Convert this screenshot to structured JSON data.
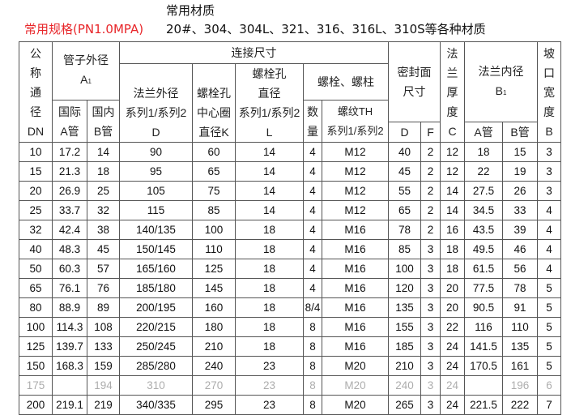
{
  "heading": {
    "material_title": "常用材质",
    "spec_title": "常用规格(PN1.0MPA)",
    "materials": "20#、304、304L、321、316、316L、310S等各种材质",
    "spec_color": "#e8262a"
  },
  "header": {
    "dn": [
      "公",
      "称",
      "通",
      "径",
      "DN"
    ],
    "pipe_od": "管子外径",
    "pipe_od_sym": "A",
    "sub1": "1",
    "intl": "国际",
    "a_pipe": "A管",
    "dom": "国内",
    "b_pipe": "B管",
    "connection": "连接尺寸",
    "flange_od": "法兰外径",
    "series": "系列1/系列2",
    "d": "D",
    "bolt_circle": [
      "螺栓孔",
      "中心圈",
      "直径K"
    ],
    "bolt_hole": [
      "螺栓孔",
      "直径"
    ],
    "l": "L",
    "bolts": "螺栓、螺柱",
    "qty": [
      "数",
      "量"
    ],
    "thread": "螺纹TH",
    "seal": [
      "密封面",
      "尺寸"
    ],
    "seal_d": "D",
    "seal_f": "F",
    "thickness": [
      "法",
      "兰",
      "厚",
      "度",
      "C"
    ],
    "flange_id": "法兰内径",
    "flange_id_sym": "B",
    "bevel": [
      "坡",
      "口",
      "宽",
      "度",
      "B"
    ]
  },
  "rows": [
    [
      "10",
      "17.2",
      "14",
      "90",
      "60",
      "14",
      "4",
      "M12",
      "40",
      "2",
      "12",
      "18",
      "15",
      "3"
    ],
    [
      "15",
      "21.3",
      "18",
      "95",
      "65",
      "14",
      "4",
      "M12",
      "45",
      "2",
      "12",
      "22",
      "19",
      "3"
    ],
    [
      "20",
      "26.9",
      "25",
      "105",
      "75",
      "14",
      "4",
      "M12",
      "55",
      "2",
      "14",
      "27.5",
      "26",
      "3"
    ],
    [
      "25",
      "33.7",
      "32",
      "115",
      "85",
      "14",
      "4",
      "M12",
      "65",
      "2",
      "14",
      "34.5",
      "33",
      "4"
    ],
    [
      "32",
      "42.4",
      "38",
      "140/135",
      "100",
      "18",
      "4",
      "M16",
      "78",
      "2",
      "16",
      "43.5",
      "39",
      "4"
    ],
    [
      "40",
      "48.3",
      "45",
      "150/145",
      "110",
      "18",
      "4",
      "M16",
      "85",
      "3",
      "18",
      "49.5",
      "46",
      "4"
    ],
    [
      "50",
      "60.3",
      "57",
      "165/160",
      "125",
      "18",
      "4",
      "M16",
      "100",
      "3",
      "18",
      "61.5",
      "56",
      "4"
    ],
    [
      "65",
      "76.1",
      "76",
      "185/180",
      "145",
      "18",
      "4",
      "M16",
      "120",
      "3",
      "20",
      "77.5",
      "78",
      "5"
    ],
    [
      "80",
      "88.9",
      "89",
      "200/195",
      "160",
      "18",
      "8/4",
      "M16",
      "135",
      "3",
      "20",
      "90.5",
      "91",
      "5"
    ],
    [
      "100",
      "114.3",
      "108",
      "220/215",
      "180",
      "18",
      "8",
      "M16",
      "155",
      "3",
      "22",
      "116",
      "110",
      "5"
    ],
    [
      "125",
      "139.7",
      "133",
      "250/245",
      "210",
      "18",
      "8",
      "M16",
      "185",
      "3",
      "24",
      "141.5",
      "135",
      "5"
    ],
    [
      "150",
      "168.3",
      "159",
      "285/280",
      "240",
      "23",
      "8",
      "M20",
      "210",
      "3",
      "24",
      "170.5",
      "161",
      "5"
    ],
    [
      "175",
      "",
      "194",
      "310",
      "270",
      "23",
      "8",
      "M20",
      "240",
      "3",
      "24",
      "",
      "196",
      "6"
    ],
    [
      "200",
      "219.1",
      "219",
      "340/335",
      "295",
      "23",
      "8",
      "M20",
      "265",
      "3",
      "24",
      "221.5",
      "222",
      "7"
    ]
  ]
}
